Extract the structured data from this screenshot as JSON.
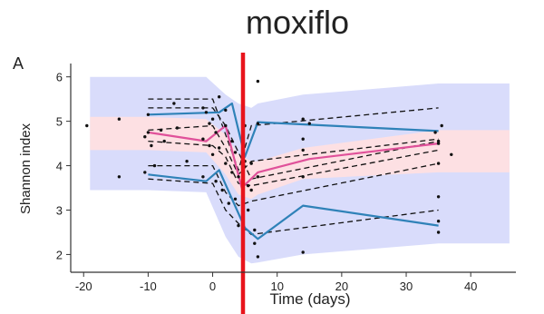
{
  "title": "moxiflo",
  "panel_label": "A",
  "chart_data": {
    "type": "line",
    "xlabel": "Time (days)",
    "ylabel": "Shannon index",
    "xlim": [
      -22,
      47
    ],
    "ylim": [
      1.6,
      6.3
    ],
    "x_ticks": [
      -20,
      -10,
      0,
      10,
      20,
      30,
      40
    ],
    "y_ticks": [
      2,
      3,
      4,
      5,
      6
    ],
    "grid": false,
    "vertical_marker": {
      "x": 4.7,
      "color": "#e8141c"
    },
    "colors": {
      "outer_band": "#d9dcfb",
      "inner_band": "#fde0e3",
      "quantile_line": "#2f82b8",
      "median_line": "#e0519a",
      "individual_line": "#111111",
      "points": "#111111"
    },
    "outer_band": {
      "x": [
        -19,
        -10,
        -1,
        2,
        4,
        6,
        7,
        14,
        35,
        46
      ],
      "lower": [
        3.45,
        3.45,
        3.4,
        2.4,
        1.95,
        1.8,
        1.82,
        2.0,
        2.25,
        2.25
      ],
      "upper": [
        6.0,
        6.0,
        6.0,
        5.6,
        5.4,
        5.3,
        5.4,
        5.6,
        5.85,
        5.85
      ]
    },
    "inner_band": {
      "x": [
        -19,
        -10,
        -1,
        2,
        4,
        6,
        7,
        14,
        35,
        46
      ],
      "lower": [
        4.35,
        4.35,
        4.3,
        3.8,
        3.35,
        3.25,
        3.35,
        3.7,
        3.85,
        3.85
      ],
      "upper": [
        5.1,
        5.1,
        5.05,
        4.7,
        4.25,
        4.1,
        4.1,
        4.4,
        4.8,
        4.8
      ]
    },
    "series": [
      {
        "role": "upper_quantile",
        "x": [
          -10,
          1,
          3,
          5,
          7,
          35
        ],
        "y": [
          5.15,
          5.2,
          5.4,
          4.2,
          4.98,
          4.78
        ]
      },
      {
        "role": "median",
        "x": [
          -10,
          -1,
          2,
          4.5,
          7,
          15,
          35
        ],
        "y": [
          4.75,
          4.55,
          4.9,
          3.5,
          3.85,
          4.15,
          4.5
        ]
      },
      {
        "role": "lower_quantile",
        "x": [
          -10,
          -1,
          1,
          5,
          7,
          14,
          35
        ],
        "y": [
          3.8,
          3.65,
          3.9,
          2.6,
          2.35,
          3.1,
          2.65
        ]
      },
      {
        "role": "individual",
        "x": [
          -10,
          0,
          2,
          4,
          6,
          35
        ],
        "y": [
          5.5,
          5.5,
          4.7,
          3.9,
          4.9,
          5.3
        ]
      },
      {
        "role": "individual",
        "x": [
          -10,
          0,
          2,
          4,
          6,
          35
        ],
        "y": [
          5.3,
          5.3,
          4.9,
          4.3,
          3.7,
          4.55
        ]
      },
      {
        "role": "individual",
        "x": [
          -10,
          0,
          2,
          4,
          6,
          35
        ],
        "y": [
          4.8,
          4.9,
          4.4,
          3.8,
          4.1,
          4.6
        ]
      },
      {
        "role": "individual",
        "x": [
          -10,
          0,
          2,
          4,
          6,
          35
        ],
        "y": [
          4.55,
          4.45,
          4.2,
          3.6,
          3.55,
          4.35
        ]
      },
      {
        "role": "individual",
        "x": [
          -10,
          0,
          2,
          4,
          6,
          35
        ],
        "y": [
          4.0,
          4.0,
          3.4,
          3.1,
          3.2,
          4.05
        ]
      },
      {
        "role": "individual",
        "x": [
          -10,
          0,
          2,
          4,
          6,
          35
        ],
        "y": [
          3.7,
          3.6,
          3.0,
          2.7,
          2.45,
          3.0
        ]
      }
    ],
    "points": [
      [
        -19.5,
        4.9
      ],
      [
        -14.5,
        5.05
      ],
      [
        -14.5,
        3.75
      ],
      [
        -10.5,
        4.65
      ],
      [
        -10.5,
        3.85
      ],
      [
        -10,
        5.15
      ],
      [
        -10,
        4.75
      ],
      [
        -9.5,
        4.45
      ],
      [
        -9,
        4.0
      ],
      [
        -8,
        4.8
      ],
      [
        -7.5,
        4.55
      ],
      [
        -6,
        5.4
      ],
      [
        -5.5,
        4.85
      ],
      [
        -4,
        4.1
      ],
      [
        -1.5,
        5.3
      ],
      [
        -1.5,
        4.6
      ],
      [
        -1.5,
        3.75
      ],
      [
        -1,
        5.2
      ],
      [
        -0.5,
        4.95
      ],
      [
        -0.5,
        4.45
      ],
      [
        0,
        5.05
      ],
      [
        0,
        4.25
      ],
      [
        0.5,
        4.75
      ],
      [
        0.5,
        3.65
      ],
      [
        1,
        5.55
      ],
      [
        1,
        4.4
      ],
      [
        1.5,
        3.45
      ],
      [
        2,
        5.25
      ],
      [
        2,
        4.9
      ],
      [
        2,
        4.05
      ],
      [
        2.5,
        3.15
      ],
      [
        3,
        4.55
      ],
      [
        3,
        3.85
      ],
      [
        3.5,
        4.3
      ],
      [
        3.5,
        3.25
      ],
      [
        4,
        3.75
      ],
      [
        4,
        2.65
      ],
      [
        5,
        4.9
      ],
      [
        5,
        4.1
      ],
      [
        5.5,
        3.55
      ],
      [
        5.5,
        3.0
      ],
      [
        6,
        4.05
      ],
      [
        6,
        3.45
      ],
      [
        6.5,
        2.55
      ],
      [
        6.5,
        2.25
      ],
      [
        7,
        5.9
      ],
      [
        7,
        4.95
      ],
      [
        7,
        3.75
      ],
      [
        7,
        1.95
      ],
      [
        14,
        5.05
      ],
      [
        14,
        4.6
      ],
      [
        14,
        4.35
      ],
      [
        14,
        3.75
      ],
      [
        14,
        2.05
      ],
      [
        15,
        4.95
      ],
      [
        34.5,
        4.75
      ],
      [
        35,
        4.55
      ],
      [
        35,
        4.5
      ],
      [
        35,
        4.05
      ],
      [
        35,
        3.3
      ],
      [
        35,
        2.75
      ],
      [
        35,
        2.5
      ],
      [
        35.5,
        4.9
      ],
      [
        37,
        4.25
      ]
    ]
  }
}
